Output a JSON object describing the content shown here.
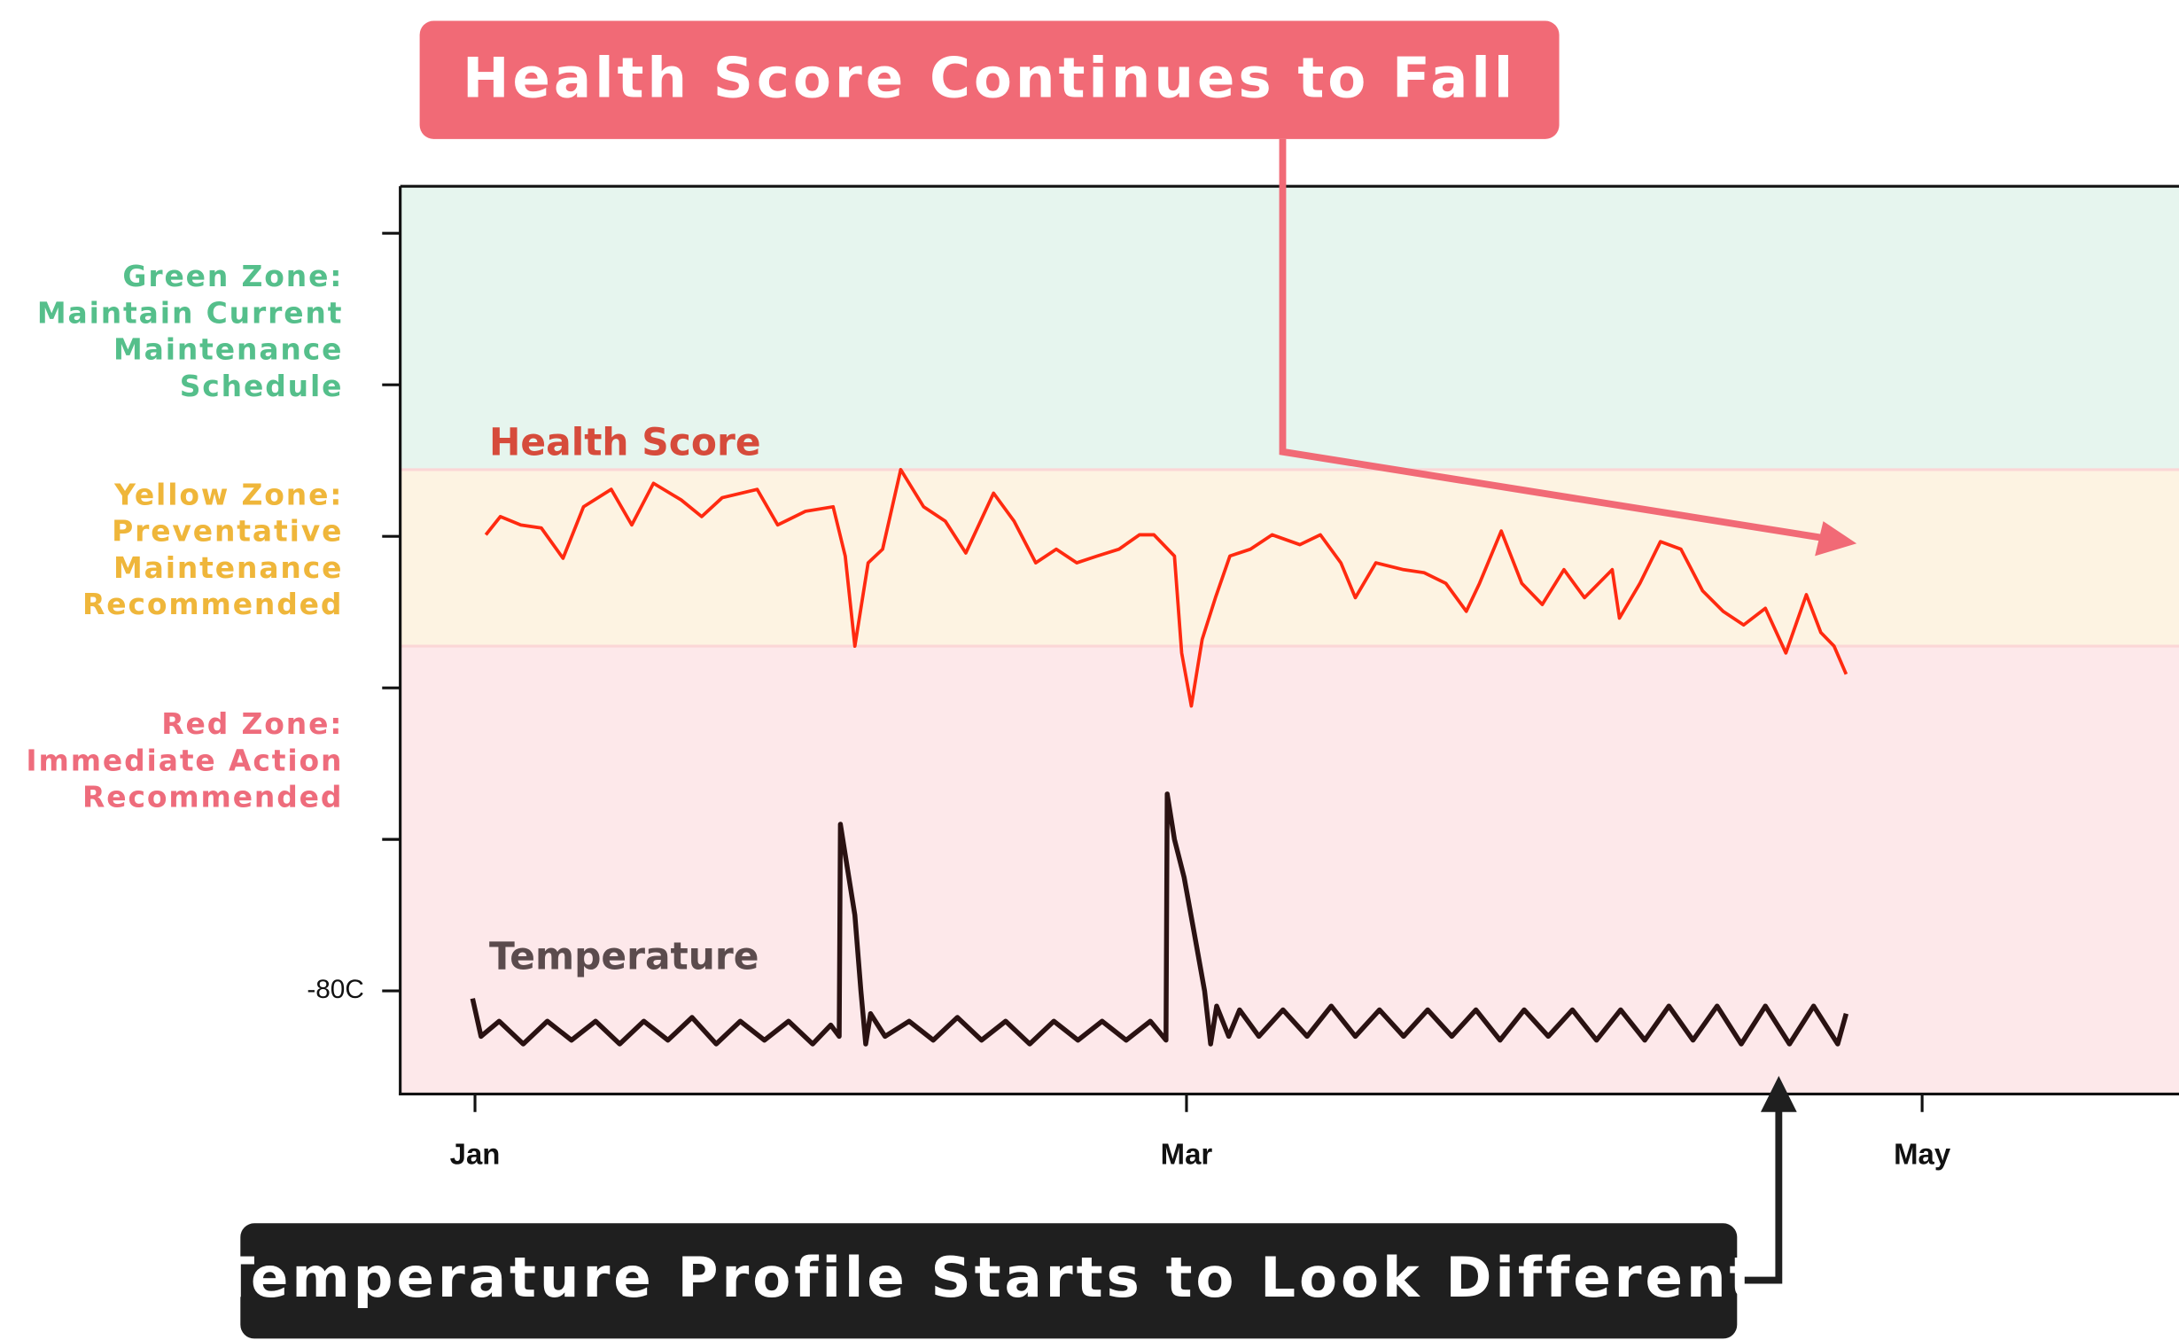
{
  "chart_data": {
    "type": "line",
    "xlim": [
      -6.2,
      141.3
    ],
    "xticks": [
      {
        "value": 0,
        "label": "Jan"
      },
      {
        "value": 59,
        "label": "Mar"
      },
      {
        "value": 120,
        "label": "May"
      }
    ],
    "ylim": [
      -93.6,
      26.2
    ],
    "yticks": [
      {
        "value": -80,
        "label": "-80C"
      }
    ],
    "minor_yticks": [
      -60,
      -40,
      -20,
      0,
      20
    ],
    "zones": [
      {
        "label": [
          "Green Zone:",
          "Maintain Current",
          "Maintenance",
          "Schedule"
        ],
        "range": [
          -11.2,
          26.2
        ],
        "color": "#55bf8b",
        "fill": "#e6f5ee"
      },
      {
        "label": [
          "Yellow Zone:",
          "Preventative",
          "Maintenance",
          "Recommended"
        ],
        "range": [
          -34.5,
          -11.2
        ],
        "color": "#efb63a",
        "fill": "#fdf3e2"
      },
      {
        "label": [
          "Red Zone:",
          "Immediate Action",
          "Recommended"
        ],
        "range": [
          -93.6,
          -34.5
        ],
        "color": "#ee6c7c",
        "fill": "#fde8ea"
      }
    ],
    "series": [
      {
        "name": "Health Score",
        "color": "#ff2a10",
        "label_color": "#d64b3b",
        "x": [
          0.9,
          2.1,
          3.8,
          5.5,
          7.3,
          9.0,
          11.3,
          13.0,
          14.8,
          17.1,
          18.8,
          20.5,
          23.4,
          25.1,
          27.4,
          29.7,
          30.7,
          31.5,
          32.6,
          33.8,
          35.3,
          37.2,
          39.0,
          40.7,
          43.0,
          44.7,
          46.5,
          48.2,
          49.9,
          51.6,
          53.4,
          55.1,
          56.3,
          58.0,
          58.6,
          59.4,
          60.3,
          61.4,
          62.6,
          64.3,
          66.1,
          68.4,
          70.1,
          71.8,
          73.0,
          74.7,
          77.0,
          78.7,
          80.5,
          82.2,
          83.3,
          85.1,
          86.8,
          88.5,
          90.3,
          92.0,
          94.3,
          94.9,
          96.6,
          98.3,
          100.0,
          101.8,
          103.5,
          105.2,
          107.0,
          108.7,
          110.4,
          111.6,
          112.7,
          113.7
        ],
        "values": [
          -19.8,
          -17.4,
          -18.5,
          -18.9,
          -22.9,
          -16.1,
          -13.8,
          -18.5,
          -13.0,
          -15.2,
          -17.4,
          -14.9,
          -13.8,
          -18.5,
          -16.7,
          -16.1,
          -22.6,
          -34.5,
          -23.5,
          -21.7,
          -11.2,
          -16.1,
          -18.0,
          -22.2,
          -14.3,
          -18.0,
          -23.5,
          -21.7,
          -23.5,
          -22.6,
          -21.7,
          -19.8,
          -19.8,
          -22.6,
          -35.4,
          -42.4,
          -33.6,
          -28.1,
          -22.6,
          -21.7,
          -19.8,
          -21.1,
          -19.8,
          -23.5,
          -28.1,
          -23.5,
          -24.4,
          -24.8,
          -26.2,
          -29.9,
          -26.2,
          -19.3,
          -26.2,
          -29.0,
          -24.4,
          -28.1,
          -24.4,
          -30.8,
          -26.2,
          -20.7,
          -21.7,
          -27.2,
          -29.9,
          -31.7,
          -29.5,
          -35.4,
          -27.7,
          -32.7,
          -34.5,
          -38.2
        ]
      },
      {
        "name": "Temperature",
        "color": "#2a1212",
        "label_color": "#5b4b4d",
        "x": [
          -0.2,
          0.5,
          2,
          4,
          6,
          8,
          10,
          12,
          14,
          16,
          18,
          20,
          22,
          24,
          26,
          28,
          29.5,
          30.2,
          30.3,
          30.8,
          31.5,
          32,
          32.4,
          32.8,
          34,
          36,
          38,
          40,
          42,
          44,
          46,
          48,
          50,
          52,
          54,
          56,
          57.3,
          57.4,
          58,
          58.8,
          59.6,
          60.5,
          61,
          61.5,
          62.5,
          63.4,
          65,
          67,
          69,
          71,
          73,
          75,
          77,
          79,
          81,
          83,
          85,
          87,
          89,
          91,
          93,
          95,
          97,
          99,
          101,
          103,
          105,
          107,
          109,
          111,
          113,
          113.7
        ],
        "values": [
          -81,
          -86,
          -84,
          -87,
          -84,
          -86.5,
          -84,
          -87,
          -84,
          -86.5,
          -83.5,
          -87,
          -84,
          -86.5,
          -84,
          -87,
          -84.5,
          -86,
          -58,
          -63,
          -70,
          -80,
          -87,
          -83,
          -86,
          -84,
          -86.5,
          -83.5,
          -86.5,
          -84,
          -87,
          -84,
          -86.5,
          -84,
          -86.5,
          -84,
          -86.5,
          -54,
          -60,
          -65,
          -72,
          -80,
          -87,
          -82,
          -86,
          -82.5,
          -86,
          -82.5,
          -86,
          -82,
          -86,
          -82.5,
          -86,
          -82.5,
          -86,
          -82.5,
          -86.5,
          -82.5,
          -86,
          -82.5,
          -86.5,
          -82.5,
          -86.5,
          -82,
          -86.5,
          -82,
          -87,
          -82,
          -87,
          -82,
          -87,
          -83
        ]
      }
    ],
    "annotations": [
      {
        "text": "Health Score Continues to Fall",
        "color": "#f16a76"
      },
      {
        "text": "Temperature Profile Starts to Look Different",
        "color": "#1f1f1f"
      }
    ]
  }
}
